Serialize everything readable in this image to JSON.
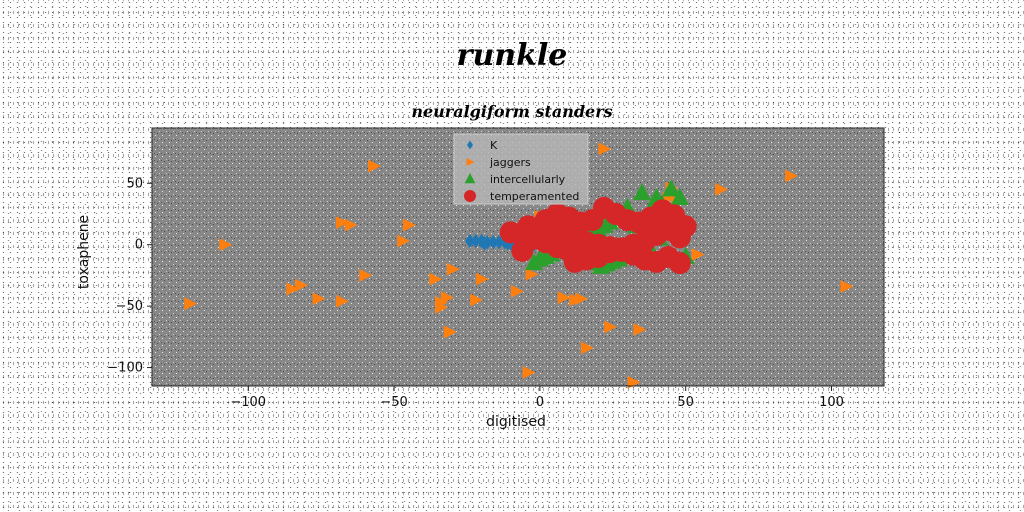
{
  "chart_data": {
    "type": "scatter",
    "suptitle": "runkle",
    "title": "neuralgiform standers",
    "xlabel": "digitised",
    "ylabel": "toxaphene",
    "xlim": [
      -133,
      118
    ],
    "ylim": [
      -115,
      95
    ],
    "xticks": [
      -100,
      -50,
      0,
      50,
      100
    ],
    "yticks": [
      -100,
      -50,
      0,
      50
    ],
    "xtick_labels": [
      "−100",
      "−50",
      "0",
      "50",
      "100"
    ],
    "ytick_labels": [
      "−100",
      "−50",
      "0",
      "50"
    ],
    "grid": false,
    "background": "#888888",
    "legend_position": "upper-center",
    "series": [
      {
        "name": "K",
        "marker": "diamond",
        "color": "#1f77b4",
        "x": [
          -24,
          -22,
          -20,
          -18,
          -16,
          -14,
          -12,
          -10,
          -8,
          -6,
          -4,
          -2,
          0,
          2,
          4,
          6,
          8,
          10,
          12,
          14,
          16,
          18,
          20,
          22,
          24,
          -19,
          -11,
          -3,
          5,
          13,
          21
        ],
        "y": [
          3,
          3,
          3,
          2,
          2,
          2,
          2,
          1,
          1,
          1,
          0,
          0,
          0,
          -1,
          -1,
          -1,
          -2,
          -2,
          -2,
          -3,
          -3,
          -3,
          -4,
          -4,
          -5,
          1,
          1,
          -1,
          -1,
          -3,
          -3
        ]
      },
      {
        "name": "jaggers",
        "marker": "triangle-right",
        "color": "#ff7f0e",
        "x": [
          -57,
          22,
          -68,
          -45,
          -65,
          -47,
          -108,
          45,
          62,
          86,
          105,
          54,
          -120,
          -82,
          -85,
          -76,
          -68,
          -60,
          -36,
          -32,
          -30,
          -34,
          -34,
          -31,
          -20,
          -3,
          -8,
          -22,
          8,
          12,
          14,
          24,
          34,
          16,
          -31,
          32,
          0,
          6,
          11,
          -4,
          44,
          47,
          48
        ],
        "y": [
          64,
          78,
          18,
          16,
          16,
          3,
          0,
          46,
          45,
          56,
          -34,
          -8,
          -48,
          -33,
          -36,
          -44,
          -46,
          -25,
          -28,
          -43,
          -20,
          -47,
          -51,
          -71,
          -28,
          -24,
          -38,
          -45,
          -43,
          -45,
          -44,
          -67,
          -69,
          -84,
          -71,
          -112,
          23,
          21,
          24,
          -104,
          38,
          35,
          36
        ]
      },
      {
        "name": "intercellularly",
        "marker": "triangle-up",
        "color": "#2ca02c",
        "x": [
          35,
          40,
          45,
          42,
          38,
          36,
          33,
          48,
          50,
          30,
          28,
          26,
          24,
          22,
          20,
          18,
          16,
          14,
          12,
          10,
          8,
          6,
          4,
          2,
          0,
          -2,
          44,
          46,
          39,
          41,
          37,
          34,
          31,
          29,
          27,
          25,
          23,
          21,
          19,
          17,
          15,
          13,
          11,
          9,
          7,
          5
        ],
        "y": [
          42,
          38,
          45,
          32,
          28,
          20,
          15,
          38,
          -10,
          30,
          25,
          22,
          18,
          15,
          12,
          10,
          8,
          5,
          3,
          0,
          -3,
          -5,
          -8,
          -10,
          -12,
          -15,
          22,
          18,
          10,
          5,
          0,
          -5,
          -8,
          -10,
          -12,
          -14,
          -16,
          -18,
          -15,
          -12,
          -10,
          -8,
          -5,
          -2,
          0,
          2
        ]
      },
      {
        "name": "temperamented",
        "marker": "circle",
        "color": "#d62728",
        "x": [
          -10,
          -6,
          -2,
          2,
          6,
          10,
          -4,
          0,
          4,
          8,
          12,
          16,
          20,
          24,
          28,
          32,
          36,
          40,
          44,
          48,
          50,
          22,
          26,
          30,
          34,
          38,
          42,
          46,
          18,
          14,
          10,
          6,
          2,
          -2,
          -6,
          12,
          16,
          20,
          24,
          28,
          32,
          36,
          40,
          44,
          48
        ],
        "y": [
          10,
          8,
          5,
          2,
          -2,
          -5,
          15,
          12,
          10,
          8,
          5,
          2,
          0,
          -2,
          -5,
          -8,
          -12,
          -14,
          -10,
          -15,
          15,
          30,
          25,
          20,
          18,
          22,
          28,
          24,
          20,
          18,
          22,
          25,
          20,
          5,
          -5,
          -14,
          -12,
          -10,
          -6,
          -3,
          0,
          3,
          8,
          12,
          6
        ]
      }
    ]
  }
}
